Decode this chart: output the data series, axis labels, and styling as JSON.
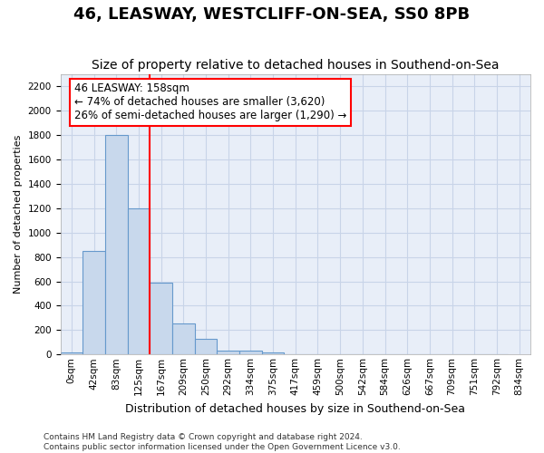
{
  "title": "46, LEASWAY, WESTCLIFF-ON-SEA, SS0 8PB",
  "subtitle": "Size of property relative to detached houses in Southend-on-Sea",
  "xlabel": "Distribution of detached houses by size in Southend-on-Sea",
  "ylabel": "Number of detached properties",
  "bar_values": [
    20,
    850,
    1800,
    1200,
    590,
    255,
    130,
    35,
    35,
    20,
    0,
    0,
    0,
    0,
    0,
    0,
    0,
    0,
    0,
    0
  ],
  "bar_labels": [
    "0sqm",
    "42sqm",
    "83sqm",
    "125sqm",
    "167sqm",
    "209sqm",
    "250sqm",
    "292sqm",
    "334sqm",
    "375sqm",
    "417sqm",
    "459sqm",
    "500sqm",
    "542sqm",
    "584sqm",
    "626sqm",
    "667sqm",
    "709sqm",
    "751sqm",
    "792sqm",
    "834sqm"
  ],
  "bar_color": "#c8d8ec",
  "bar_edge_color": "#6699cc",
  "vline_x": 3.5,
  "vline_color": "red",
  "ylim": [
    0,
    2300
  ],
  "yticks": [
    0,
    200,
    400,
    600,
    800,
    1000,
    1200,
    1400,
    1600,
    1800,
    2000,
    2200
  ],
  "annotation_text": "46 LEASWAY: 158sqm\n← 74% of detached houses are smaller (3,620)\n26% of semi-detached houses are larger (1,290) →",
  "annotation_box_facecolor": "white",
  "annotation_box_edgecolor": "red",
  "grid_color": "#c8d4e8",
  "plot_bg_color": "#e8eef8",
  "fig_bg_color": "white",
  "footer_line1": "Contains HM Land Registry data © Crown copyright and database right 2024.",
  "footer_line2": "Contains public sector information licensed under the Open Government Licence v3.0.",
  "title_fontsize": 13,
  "subtitle_fontsize": 10,
  "xlabel_fontsize": 9,
  "ylabel_fontsize": 8,
  "tick_fontsize": 7.5,
  "annot_fontsize": 8.5,
  "footer_fontsize": 6.5
}
